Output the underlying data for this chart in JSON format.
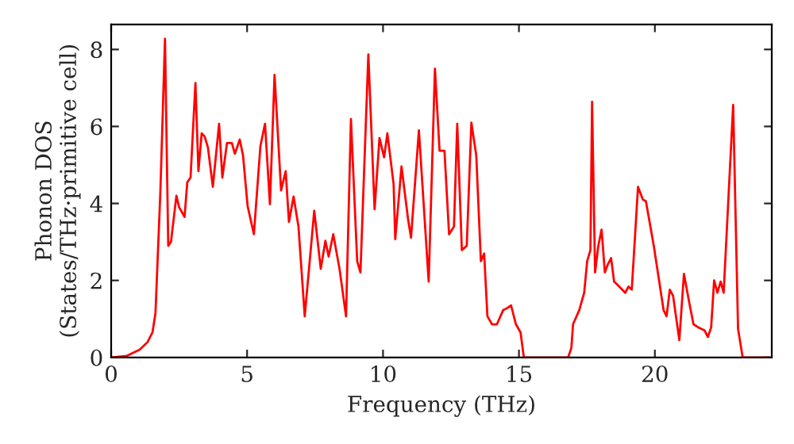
{
  "chart_data": {
    "type": "line",
    "xlabel": "Frequency (THz)",
    "ylabel": "Phonon DOS\n(States/THz·primitive cell)",
    "xlim": [
      0,
      24.3
    ],
    "ylim": [
      0,
      8.65
    ],
    "xticks": [
      0,
      5,
      10,
      15,
      20
    ],
    "yticks": [
      0,
      2,
      4,
      6,
      8
    ],
    "grid": false,
    "legend": false,
    "marker": "none",
    "line_style": "solid",
    "x": [
      0,
      0.58,
      1.05,
      1.34,
      1.52,
      1.63,
      1.81,
      1.98,
      2.1,
      2.2,
      2.4,
      2.5,
      2.7,
      2.8,
      2.92,
      3.1,
      3.21,
      3.33,
      3.44,
      3.56,
      3.74,
      3.97,
      4.09,
      4.26,
      4.44,
      4.55,
      4.73,
      4.85,
      5.02,
      5.25,
      5.49,
      5.66,
      5.84,
      6.01,
      6.25,
      6.42,
      6.54,
      6.71,
      6.89,
      7.12,
      7.47,
      7.71,
      7.88,
      8.0,
      8.17,
      8.4,
      8.64,
      8.82,
      9.05,
      9.17,
      9.46,
      9.69,
      9.87,
      10.04,
      10.16,
      10.39,
      10.45,
      10.68,
      10.92,
      11.03,
      11.32,
      11.68,
      11.91,
      12.08,
      12.26,
      12.43,
      12.61,
      12.73,
      12.9,
      13.08,
      13.25,
      13.43,
      13.6,
      13.72,
      13.84,
      14.01,
      14.19,
      14.42,
      14.54,
      14.71,
      14.89,
      15.06,
      15.18,
      16.81,
      16.93,
      16.99,
      17.22,
      17.4,
      17.51,
      17.63,
      17.69,
      17.8,
      17.92,
      18.04,
      18.16,
      18.27,
      18.39,
      18.5,
      18.62,
      18.91,
      19.03,
      19.15,
      19.38,
      19.56,
      19.67,
      19.96,
      20.32,
      20.43,
      20.55,
      20.67,
      20.9,
      21.07,
      21.25,
      21.42,
      21.6,
      21.83,
      21.95,
      22.07,
      22.18,
      22.3,
      22.42,
      22.53,
      22.88,
      23.06,
      23.23,
      24.2
    ],
    "series": [
      {
        "color": "#ff0000",
        "values": [
          0,
          0.04,
          0.2,
          0.4,
          0.65,
          1.15,
          4.3,
          8.28,
          2.9,
          3.0,
          4.2,
          3.9,
          3.65,
          4.55,
          4.67,
          7.13,
          4.84,
          5.82,
          5.74,
          5.45,
          4.43,
          6.07,
          4.67,
          5.57,
          5.57,
          5.29,
          5.66,
          5.25,
          3.93,
          3.2,
          5.49,
          6.07,
          3.98,
          7.34,
          4.34,
          4.84,
          3.52,
          4.18,
          3.4,
          1.07,
          3.81,
          2.3,
          3.03,
          2.62,
          3.2,
          2.3,
          1.07,
          6.19,
          2.5,
          2.21,
          7.87,
          3.85,
          5.7,
          5.2,
          5.82,
          4.5,
          3.07,
          4.96,
          3.6,
          3.11,
          5.9,
          1.97,
          7.5,
          5.37,
          5.37,
          3.2,
          3.4,
          6.07,
          2.79,
          2.9,
          6.1,
          5.25,
          2.5,
          2.7,
          1.07,
          0.86,
          0.86,
          1.23,
          1.27,
          1.35,
          0.86,
          0.65,
          0,
          0,
          0.25,
          0.86,
          1.23,
          1.68,
          2.5,
          2.79,
          6.64,
          2.21,
          2.9,
          3.32,
          2.21,
          2.42,
          2.58,
          1.97,
          1.89,
          1.68,
          1.84,
          1.76,
          4.43,
          4.1,
          4.06,
          2.9,
          1.23,
          1.07,
          1.76,
          1.6,
          0.45,
          2.17,
          1.48,
          0.86,
          0.78,
          0.7,
          0.53,
          0.78,
          2.0,
          1.68,
          1.97,
          1.68,
          6.56,
          0.74,
          0,
          0
        ]
      }
    ]
  }
}
